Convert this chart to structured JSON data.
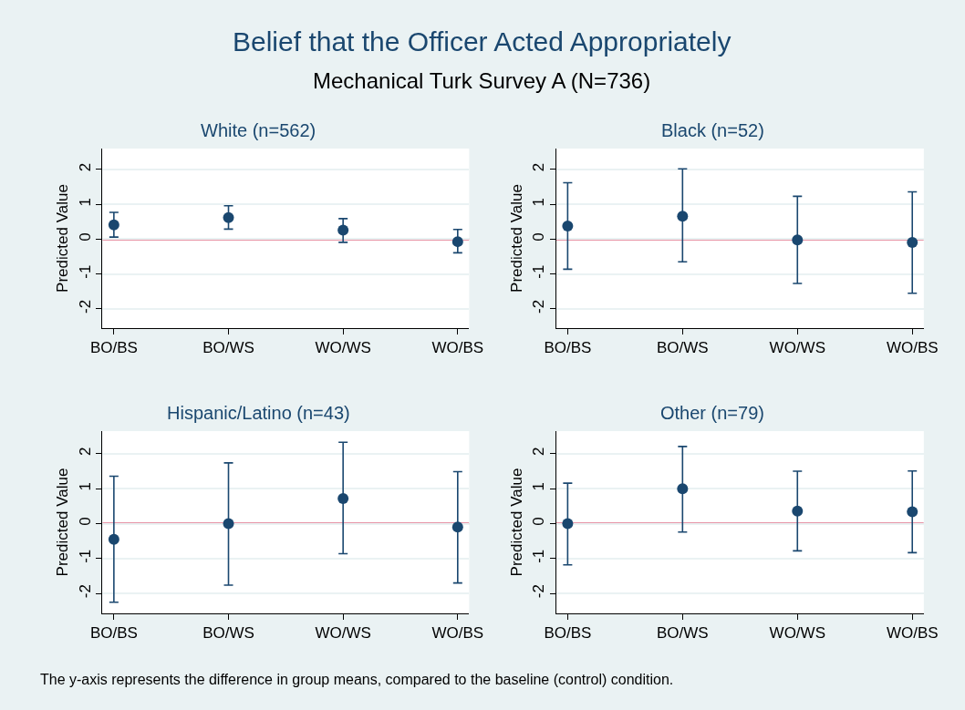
{
  "chart_data": [
    {
      "type": "other",
      "title": "Belief that the Officer Acted Appropriately",
      "subtitle": "Mechanical Turk Survey A (N=736)"
    },
    {
      "type": "scatter",
      "title": "White (n=562)",
      "ylabel": "Predicted Value",
      "categories": [
        "BO/BS",
        "BO/WS",
        "WO/WS",
        "WO/BS"
      ],
      "values": [
        0.41,
        0.62,
        0.26,
        -0.07
      ],
      "errors": [
        [
          0.06,
          0.77
        ],
        [
          0.29,
          0.96
        ],
        [
          -0.09,
          0.59
        ],
        [
          -0.39,
          0.28
        ]
      ],
      "color": "#1a476f",
      "marker": "circle",
      "ylim": [
        -2.55,
        2.6
      ],
      "yticks": [
        -2,
        -1,
        0,
        1,
        2
      ],
      "grid": "y",
      "ref_lines": [
        {
          "axis": "y",
          "value": 0,
          "color": "#d02a4f"
        }
      ]
    },
    {
      "type": "scatter",
      "title": "Black (n=52)",
      "ylabel": "Predicted Value",
      "categories": [
        "BO/BS",
        "BO/WS",
        "WO/WS",
        "WO/BS"
      ],
      "values": [
        0.38,
        0.66,
        -0.02,
        -0.09
      ],
      "errors": [
        [
          -0.86,
          1.62
        ],
        [
          -0.65,
          2.02
        ],
        [
          -1.27,
          1.23
        ],
        [
          -1.55,
          1.36
        ]
      ],
      "color": "#1a476f",
      "marker": "circle",
      "ylim": [
        -2.55,
        2.6
      ],
      "yticks": [
        -2,
        -1,
        0,
        1,
        2
      ],
      "grid": "y",
      "ref_lines": [
        {
          "axis": "y",
          "value": 0,
          "color": "#d02a4f"
        }
      ]
    },
    {
      "type": "scatter",
      "title": "Hispanic/Latino (n=43)",
      "ylabel": "Predicted Value",
      "categories": [
        "BO/BS",
        "BO/WS",
        "WO/WS",
        "WO/BS"
      ],
      "values": [
        -0.45,
        0.0,
        0.72,
        -0.1
      ],
      "errors": [
        [
          -2.25,
          1.36
        ],
        [
          -1.76,
          1.74
        ],
        [
          -0.86,
          2.33
        ],
        [
          -1.7,
          1.49
        ]
      ],
      "color": "#1a476f",
      "marker": "circle",
      "ylim": [
        -2.57,
        2.65
      ],
      "yticks": [
        -2,
        -1,
        0,
        1,
        2
      ],
      "grid": "y",
      "ref_lines": [
        {
          "axis": "y",
          "value": 0,
          "color": "#d02a4f"
        }
      ]
    },
    {
      "type": "scatter",
      "title": "Other (n=79)",
      "ylabel": "Predicted Value",
      "categories": [
        "BO/BS",
        "BO/WS",
        "WO/WS",
        "WO/BS"
      ],
      "values": [
        0.0,
        1.0,
        0.36,
        0.34
      ],
      "errors": [
        [
          -1.18,
          1.16
        ],
        [
          -0.24,
          2.21
        ],
        [
          -0.78,
          1.5
        ],
        [
          -0.83,
          1.51
        ]
      ],
      "color": "#1a476f",
      "marker": "circle",
      "ylim": [
        -2.57,
        2.65
      ],
      "yticks": [
        -2,
        -1,
        0,
        1,
        2
      ],
      "grid": "y",
      "ref_lines": [
        {
          "axis": "y",
          "value": 0,
          "color": "#d02a4f"
        }
      ]
    },
    {
      "type": "other",
      "annotations": [
        "The y-axis represents the difference in group means, compared to the baseline (control) condition."
      ]
    }
  ]
}
